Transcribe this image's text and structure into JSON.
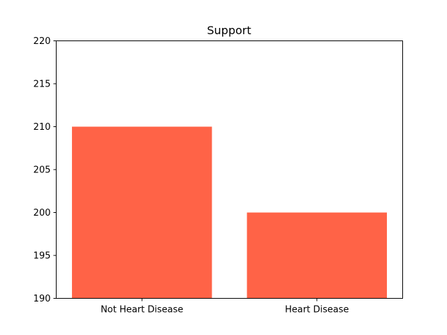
{
  "chart_data": {
    "type": "bar",
    "title": "Support",
    "xlabel": "",
    "ylabel": "",
    "categories": [
      "Not Heart Disease",
      "Heart Disease"
    ],
    "values": [
      210,
      200
    ],
    "ylim": [
      190,
      220
    ],
    "yticks": [
      190,
      195,
      200,
      205,
      210,
      215,
      220
    ],
    "bar_color": "#ff6347",
    "grid": false,
    "legend": "none"
  }
}
